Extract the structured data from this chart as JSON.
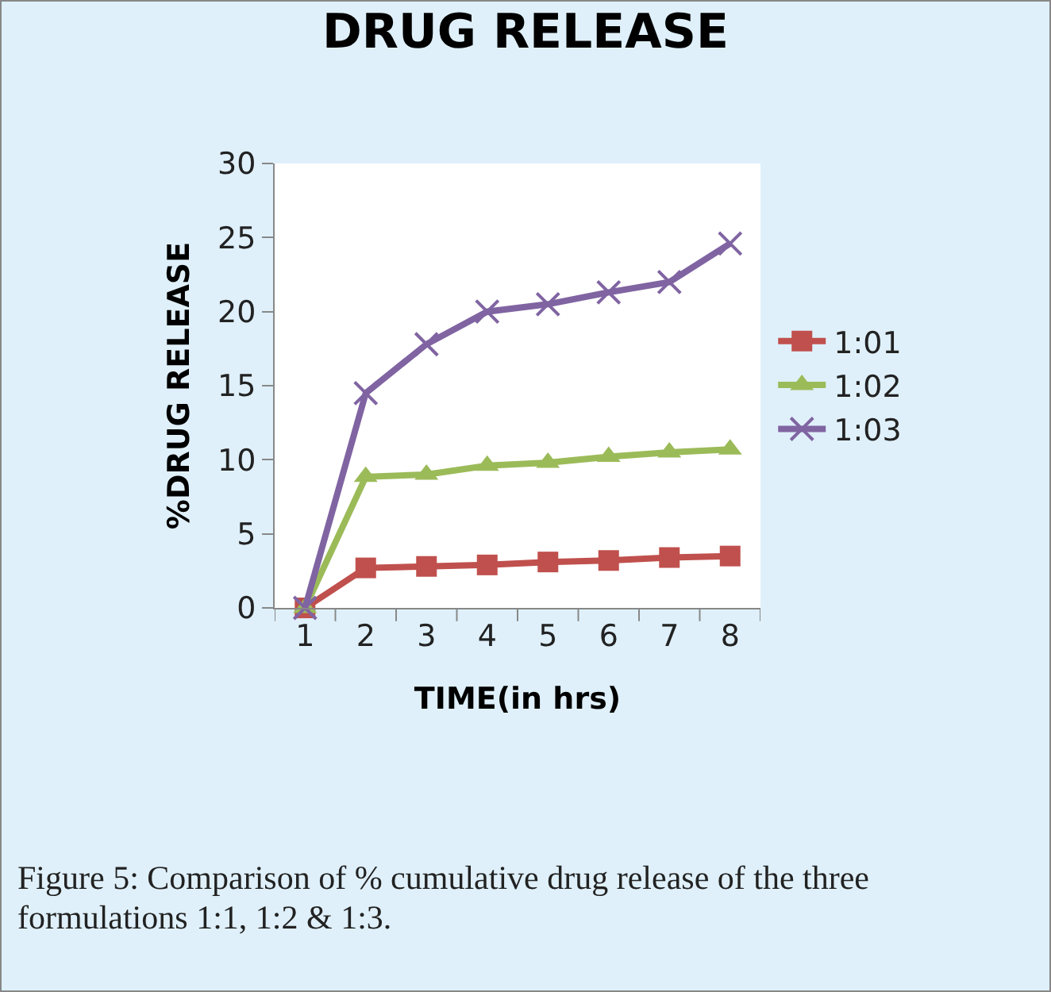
{
  "chart_data": {
    "type": "line",
    "title": "DRUG RELEASE",
    "xlabel": "TIME(in hrs)",
    "ylabel": "%DRUG RELEASE",
    "categories": [
      "1",
      "2",
      "3",
      "4",
      "5",
      "6",
      "7",
      "8"
    ],
    "series": [
      {
        "name": "1:01",
        "color": "#c0504d",
        "marker": "square",
        "values": [
          0,
          2.7,
          2.8,
          2.9,
          3.1,
          3.2,
          3.4,
          3.5
        ]
      },
      {
        "name": "1:02",
        "color": "#9bbb59",
        "marker": "triangle",
        "values": [
          0,
          8.85,
          9.0,
          9.6,
          9.8,
          10.2,
          10.5,
          10.7
        ]
      },
      {
        "name": "1:03",
        "color": "#8064a2",
        "marker": "cross",
        "values": [
          0,
          14.5,
          17.8,
          20.0,
          20.5,
          21.3,
          22.0,
          24.6
        ]
      }
    ],
    "ylim": [
      0,
      30
    ],
    "yticks": [
      0,
      5,
      10,
      15,
      20,
      25,
      30
    ],
    "grid": false,
    "legend": "right",
    "line_style": "solid",
    "annotations": [
      "Figure 5: Comparison of % cumulative drug release of the three formulations 1:1, 1:2 & 1:3."
    ]
  }
}
